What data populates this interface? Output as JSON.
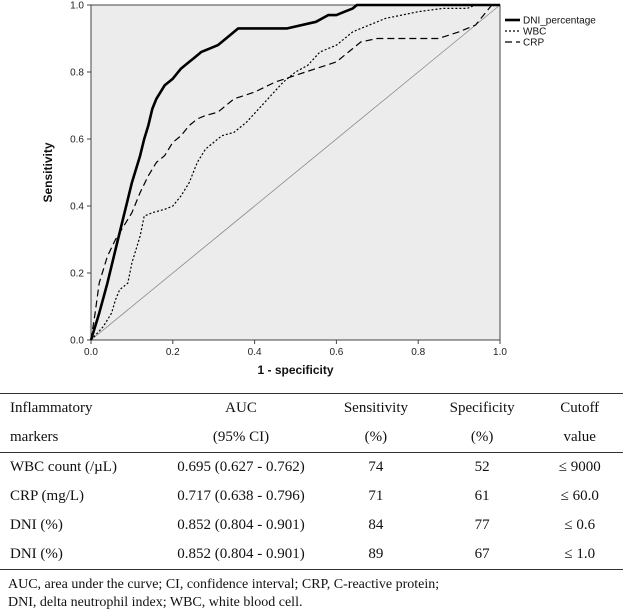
{
  "chart_data": {
    "type": "line",
    "title": "",
    "xlabel": "1 - specificity",
    "ylabel": "Sensitivity",
    "xlim": [
      0,
      1
    ],
    "ylim": [
      0,
      1
    ],
    "xticks": [
      "0.0",
      "0.2",
      "0.4",
      "0.6",
      "0.8",
      "1.0"
    ],
    "yticks": [
      "0.0",
      "0.2",
      "0.4",
      "0.6",
      "0.8",
      "1.0"
    ],
    "grid": false,
    "legend_position": "right",
    "series": [
      {
        "name": "DNI_percentage",
        "style": "solid-thick",
        "x": [
          0,
          0.02,
          0.04,
          0.06,
          0.08,
          0.1,
          0.12,
          0.13,
          0.14,
          0.15,
          0.16,
          0.18,
          0.2,
          0.22,
          0.24,
          0.25,
          0.27,
          0.29,
          0.31,
          0.33,
          0.34,
          0.36,
          0.4,
          0.48,
          0.55,
          0.58,
          0.6,
          0.62,
          0.64,
          0.65,
          0.68,
          0.72,
          0.8,
          0.9,
          1.0
        ],
        "y": [
          0,
          0.08,
          0.17,
          0.27,
          0.37,
          0.47,
          0.55,
          0.6,
          0.64,
          0.69,
          0.72,
          0.76,
          0.78,
          0.81,
          0.83,
          0.84,
          0.86,
          0.87,
          0.88,
          0.9,
          0.91,
          0.93,
          0.93,
          0.93,
          0.95,
          0.97,
          0.97,
          0.98,
          0.99,
          1.0,
          1.0,
          1.0,
          1.0,
          1.0,
          1.0
        ]
      },
      {
        "name": "WBC",
        "style": "dotted",
        "x": [
          0,
          0.03,
          0.05,
          0.06,
          0.07,
          0.09,
          0.1,
          0.12,
          0.13,
          0.15,
          0.18,
          0.2,
          0.22,
          0.24,
          0.26,
          0.28,
          0.3,
          0.32,
          0.35,
          0.38,
          0.41,
          0.44,
          0.47,
          0.5,
          0.53,
          0.56,
          0.6,
          0.64,
          0.68,
          0.72,
          0.76,
          0.8,
          0.86,
          0.9,
          0.92,
          0.94,
          0.96,
          1.0
        ],
        "y": [
          0,
          0.04,
          0.08,
          0.12,
          0.15,
          0.17,
          0.23,
          0.31,
          0.37,
          0.38,
          0.39,
          0.4,
          0.43,
          0.47,
          0.53,
          0.57,
          0.59,
          0.61,
          0.62,
          0.65,
          0.69,
          0.73,
          0.77,
          0.8,
          0.82,
          0.86,
          0.88,
          0.92,
          0.94,
          0.96,
          0.97,
          0.98,
          0.99,
          0.99,
          0.99,
          1.0,
          1.0,
          1.0
        ]
      },
      {
        "name": "CRP",
        "style": "dashed",
        "x": [
          0,
          0.01,
          0.02,
          0.04,
          0.06,
          0.08,
          0.1,
          0.12,
          0.14,
          0.16,
          0.18,
          0.2,
          0.22,
          0.24,
          0.26,
          0.28,
          0.31,
          0.35,
          0.4,
          0.45,
          0.5,
          0.55,
          0.6,
          0.63,
          0.66,
          0.7,
          0.75,
          0.8,
          0.85,
          0.9,
          0.94,
          0.96,
          0.98,
          1.0
        ],
        "y": [
          0,
          0.08,
          0.17,
          0.25,
          0.3,
          0.34,
          0.38,
          0.44,
          0.49,
          0.53,
          0.55,
          0.59,
          0.61,
          0.64,
          0.66,
          0.67,
          0.68,
          0.72,
          0.74,
          0.77,
          0.79,
          0.81,
          0.83,
          0.86,
          0.89,
          0.9,
          0.9,
          0.9,
          0.9,
          0.92,
          0.94,
          0.97,
          1.0,
          1.0
        ]
      }
    ]
  },
  "table": {
    "headers": [
      [
        "Inflammatory",
        "AUC",
        "Sensitivity",
        "Specificity",
        "Cutoff"
      ],
      [
        "markers",
        "(95% CI)",
        "(%)",
        "(%)",
        "value"
      ]
    ],
    "rows": [
      [
        "WBC count (/µL)",
        "0.695 (0.627 - 0.762)",
        "74",
        "52",
        "≤ 9000"
      ],
      [
        "CRP (mg/L)",
        "0.717 (0.638 - 0.796)",
        "71",
        "61",
        "≤ 60.0"
      ],
      [
        "DNI (%)",
        "0.852 (0.804 - 0.901)",
        "84",
        "77",
        "≤ 0.6"
      ],
      [
        "DNI (%)",
        "0.852 (0.804 - 0.901)",
        "89",
        "67",
        "≤ 1.0"
      ]
    ]
  },
  "footnote": {
    "line1": "AUC, area under the curve; CI, confidence interval; CRP, C-reactive protein;",
    "line2": "DNI, delta neutrophil index; WBC, white blood cell."
  },
  "colors": {
    "plot_bg": "#ececec",
    "line": "#000000"
  }
}
